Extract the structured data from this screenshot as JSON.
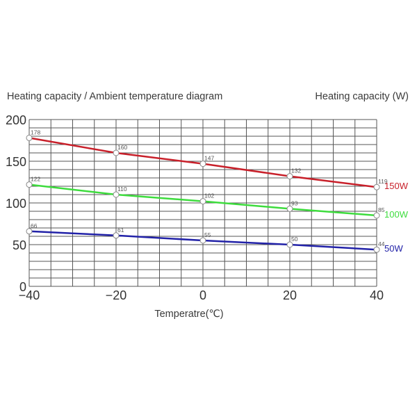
{
  "header": {
    "title_left": "Heating capacity / Ambient temperature diagram",
    "title_right": "Heating capacity (W)"
  },
  "chart_data": {
    "type": "line",
    "title": "Heating capacity / Ambient temperature diagram",
    "xlabel": "Temperatre(℃)",
    "ylabel": "Heating capacity (W)",
    "x": [
      -40,
      -20,
      0,
      20,
      40
    ],
    "xticks": [
      -40,
      -20,
      0,
      20,
      40
    ],
    "yticks": [
      0,
      50,
      100,
      150,
      200
    ],
    "xlim": [
      -40,
      40
    ],
    "ylim": [
      0,
      200
    ],
    "grid": true,
    "grid_x_step": 5,
    "grid_y_step": 10,
    "legend_position": "right, at line ends",
    "series": [
      {
        "name": "150W",
        "color": "#c8202a",
        "values": [
          178,
          160,
          147,
          132,
          119
        ]
      },
      {
        "name": "100W",
        "color": "#3ddc3d",
        "values": [
          122,
          110,
          102,
          93,
          85
        ]
      },
      {
        "name": "50W",
        "color": "#2222a8",
        "values": [
          66,
          61,
          55,
          50,
          44
        ]
      }
    ]
  }
}
